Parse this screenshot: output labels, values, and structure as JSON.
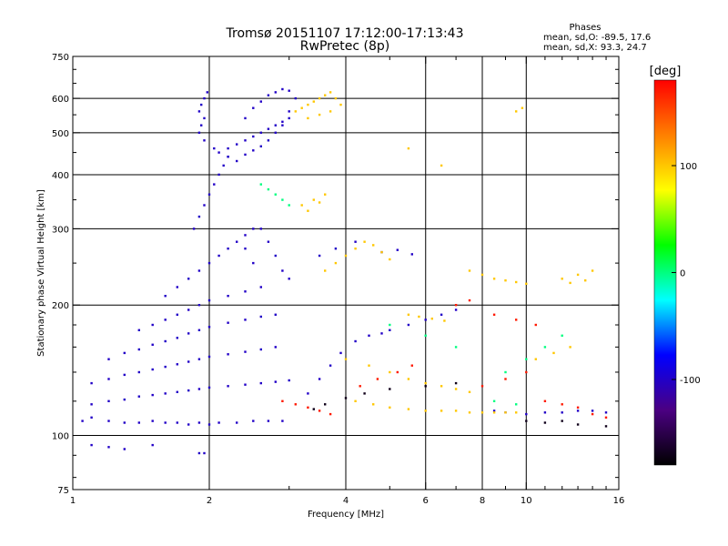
{
  "chart_data": {
    "type": "scatter",
    "title": "Tromsø 20151107 17:12:00-17:13:43",
    "subtitle": "RwPretec (8p)",
    "xlabel": "Frequency [MHz]",
    "ylabel": "Stationary phase Virtual Height [km]",
    "x_scale": "log",
    "y_scale": "log",
    "xlim": [
      1,
      16
    ],
    "ylim": [
      75,
      750
    ],
    "x_ticks": [
      1,
      2,
      4,
      6,
      8,
      10,
      16
    ],
    "x_grid": [
      2,
      4,
      6,
      8,
      10
    ],
    "y_ticks": [
      75,
      100,
      200,
      300,
      400,
      500,
      600,
      750
    ],
    "y_grid": [
      100,
      200,
      300,
      400,
      500,
      600
    ],
    "grid": true,
    "stats": {
      "heading": "Phases",
      "line_o": "mean, sd,O: -89.5, 17.6",
      "line_x": "mean, sd,X: 93.3, 24.7"
    },
    "colorbar": {
      "label": "[deg]",
      "ticks": [
        100,
        0,
        -100
      ],
      "range": [
        -180,
        180
      ],
      "colors": [
        "#000000",
        "#4b0082",
        "#0000ff",
        "#00ffff",
        "#00ff00",
        "#ffff00",
        "#ff8000",
        "#ff0000"
      ]
    },
    "series": [
      {
        "description_phase_deg": -100,
        "points": [
          [
            1.05,
            108
          ],
          [
            1.1,
            110
          ],
          [
            1.2,
            108
          ],
          [
            1.3,
            107
          ],
          [
            1.4,
            107
          ],
          [
            1.5,
            108
          ],
          [
            1.6,
            107
          ],
          [
            1.7,
            107
          ],
          [
            1.8,
            106
          ],
          [
            1.9,
            107
          ],
          [
            2.0,
            106
          ],
          [
            2.1,
            107
          ],
          [
            2.3,
            107
          ],
          [
            2.5,
            108
          ],
          [
            2.7,
            108
          ],
          [
            2.9,
            108
          ],
          [
            1.1,
            118
          ],
          [
            1.2,
            120
          ],
          [
            1.3,
            121
          ],
          [
            1.4,
            123
          ],
          [
            1.5,
            124
          ],
          [
            1.6,
            125
          ],
          [
            1.7,
            126
          ],
          [
            1.8,
            127
          ],
          [
            1.9,
            128
          ],
          [
            2.0,
            129
          ],
          [
            2.2,
            130
          ],
          [
            2.4,
            131
          ],
          [
            2.6,
            132
          ],
          [
            2.8,
            133
          ],
          [
            3.0,
            134
          ],
          [
            1.1,
            132
          ],
          [
            1.2,
            135
          ],
          [
            1.3,
            138
          ],
          [
            1.4,
            140
          ],
          [
            1.5,
            142
          ],
          [
            1.6,
            144
          ],
          [
            1.7,
            146
          ],
          [
            1.8,
            148
          ],
          [
            1.9,
            150
          ],
          [
            2.0,
            152
          ],
          [
            2.2,
            154
          ],
          [
            2.4,
            156
          ],
          [
            2.6,
            158
          ],
          [
            2.8,
            160
          ],
          [
            1.2,
            150
          ],
          [
            1.3,
            155
          ],
          [
            1.4,
            158
          ],
          [
            1.5,
            162
          ],
          [
            1.6,
            165
          ],
          [
            1.7,
            168
          ],
          [
            1.8,
            172
          ],
          [
            1.9,
            175
          ],
          [
            2.0,
            178
          ],
          [
            2.2,
            182
          ],
          [
            2.4,
            185
          ],
          [
            2.6,
            188
          ],
          [
            2.8,
            190
          ],
          [
            1.4,
            175
          ],
          [
            1.5,
            180
          ],
          [
            1.6,
            185
          ],
          [
            1.7,
            190
          ],
          [
            1.8,
            195
          ],
          [
            1.9,
            200
          ],
          [
            2.0,
            205
          ],
          [
            2.2,
            210
          ],
          [
            2.4,
            215
          ],
          [
            2.6,
            220
          ],
          [
            1.6,
            210
          ],
          [
            1.7,
            220
          ],
          [
            1.8,
            230
          ],
          [
            1.9,
            240
          ],
          [
            2.0,
            250
          ],
          [
            2.1,
            260
          ],
          [
            2.2,
            270
          ],
          [
            2.3,
            280
          ],
          [
            2.4,
            290
          ],
          [
            2.5,
            300
          ],
          [
            1.85,
            300
          ],
          [
            1.9,
            320
          ],
          [
            1.95,
            340
          ],
          [
            2.0,
            360
          ],
          [
            2.05,
            380
          ],
          [
            2.1,
            400
          ],
          [
            2.15,
            420
          ],
          [
            2.2,
            440
          ],
          [
            2.05,
            460
          ],
          [
            1.95,
            480
          ],
          [
            1.9,
            500
          ],
          [
            1.92,
            520
          ],
          [
            1.95,
            540
          ],
          [
            1.9,
            560
          ],
          [
            1.92,
            580
          ],
          [
            1.95,
            600
          ],
          [
            1.98,
            620
          ],
          [
            2.1,
            450
          ],
          [
            2.2,
            460
          ],
          [
            2.3,
            470
          ],
          [
            2.4,
            480
          ],
          [
            2.5,
            490
          ],
          [
            2.6,
            500
          ],
          [
            2.7,
            510
          ],
          [
            2.8,
            520
          ],
          [
            2.9,
            530
          ],
          [
            3.0,
            540
          ],
          [
            2.2,
            440
          ],
          [
            2.3,
            430
          ],
          [
            2.4,
            445
          ],
          [
            2.5,
            455
          ],
          [
            2.6,
            465
          ],
          [
            2.7,
            480
          ],
          [
            2.8,
            500
          ],
          [
            2.9,
            520
          ],
          [
            3.0,
            560
          ],
          [
            3.1,
            600
          ],
          [
            2.4,
            540
          ],
          [
            2.5,
            570
          ],
          [
            2.6,
            590
          ],
          [
            2.7,
            610
          ],
          [
            2.8,
            620
          ],
          [
            2.9,
            630
          ],
          [
            3.0,
            625
          ],
          [
            2.6,
            300
          ],
          [
            2.7,
            280
          ],
          [
            2.8,
            260
          ],
          [
            2.9,
            240
          ],
          [
            3.0,
            230
          ],
          [
            2.5,
            250
          ],
          [
            2.4,
            270
          ],
          [
            1.1,
            95
          ],
          [
            1.2,
            94
          ],
          [
            1.3,
            93
          ],
          [
            1.5,
            95
          ],
          [
            1.9,
            91
          ],
          [
            1.95,
            91
          ],
          [
            3.3,
            125
          ],
          [
            3.5,
            135
          ],
          [
            3.7,
            145
          ],
          [
            3.9,
            155
          ],
          [
            4.2,
            165
          ],
          [
            4.5,
            170
          ],
          [
            4.8,
            172
          ],
          [
            5.0,
            175
          ],
          [
            5.5,
            180
          ],
          [
            6.0,
            185
          ],
          [
            6.5,
            190
          ],
          [
            7.0,
            195
          ],
          [
            3.5,
            260
          ],
          [
            3.8,
            270
          ],
          [
            4.2,
            280
          ],
          [
            4.8,
            265
          ],
          [
            5.2,
            268
          ],
          [
            5.6,
            262
          ],
          [
            10.0,
            112
          ],
          [
            11,
            113
          ],
          [
            12,
            113
          ],
          [
            13,
            114
          ],
          [
            14,
            114
          ],
          [
            15,
            113
          ],
          [
            9.0,
            113
          ],
          [
            8.5,
            114
          ]
        ]
      },
      {
        "description_phase_deg": 100,
        "points": [
          [
            3.1,
            560
          ],
          [
            3.2,
            570
          ],
          [
            3.3,
            580
          ],
          [
            3.4,
            590
          ],
          [
            3.5,
            600
          ],
          [
            3.6,
            610
          ],
          [
            3.7,
            620
          ],
          [
            3.8,
            600
          ],
          [
            3.9,
            580
          ],
          [
            3.3,
            540
          ],
          [
            3.5,
            550
          ],
          [
            3.7,
            560
          ],
          [
            3.2,
            340
          ],
          [
            3.4,
            350
          ],
          [
            3.6,
            360
          ],
          [
            3.3,
            330
          ],
          [
            3.5,
            345
          ],
          [
            3.6,
            240
          ],
          [
            3.8,
            250
          ],
          [
            4.0,
            260
          ],
          [
            4.2,
            270
          ],
          [
            4.4,
            280
          ],
          [
            4.6,
            275
          ],
          [
            4.8,
            265
          ],
          [
            5.0,
            255
          ],
          [
            4.0,
            150
          ],
          [
            4.5,
            145
          ],
          [
            5.0,
            140
          ],
          [
            5.5,
            135
          ],
          [
            6.0,
            132
          ],
          [
            6.5,
            130
          ],
          [
            7.0,
            128
          ],
          [
            7.5,
            126
          ],
          [
            4.2,
            120
          ],
          [
            4.6,
            118
          ],
          [
            5.0,
            116
          ],
          [
            5.5,
            115
          ],
          [
            6.0,
            114
          ],
          [
            6.5,
            114
          ],
          [
            7.0,
            114
          ],
          [
            7.5,
            113
          ],
          [
            8.0,
            113
          ],
          [
            8.5,
            113
          ],
          [
            9.0,
            113
          ],
          [
            9.5,
            113
          ],
          [
            5.5,
            190
          ],
          [
            5.8,
            188
          ],
          [
            6.2,
            186
          ],
          [
            6.6,
            184
          ],
          [
            7.5,
            240
          ],
          [
            8.0,
            235
          ],
          [
            8.5,
            230
          ],
          [
            9.0,
            228
          ],
          [
            9.5,
            226
          ],
          [
            10.0,
            224
          ],
          [
            9.5,
            560
          ],
          [
            9.8,
            570
          ],
          [
            6.5,
            420
          ],
          [
            5.5,
            460
          ],
          [
            12,
            230
          ],
          [
            13,
            235
          ],
          [
            14,
            240
          ],
          [
            12.5,
            225
          ],
          [
            13.5,
            228
          ],
          [
            10.5,
            150
          ],
          [
            11.5,
            155
          ],
          [
            12.5,
            160
          ]
        ]
      },
      {
        "description_phase_deg": 170,
        "points": [
          [
            2.9,
            120
          ],
          [
            3.1,
            118
          ],
          [
            3.3,
            116
          ],
          [
            3.5,
            114
          ],
          [
            3.7,
            112
          ],
          [
            4.3,
            130
          ],
          [
            4.7,
            135
          ],
          [
            5.2,
            140
          ],
          [
            5.6,
            145
          ],
          [
            8.0,
            130
          ],
          [
            9.0,
            135
          ],
          [
            10.0,
            140
          ],
          [
            11.0,
            120
          ],
          [
            12.0,
            118
          ],
          [
            13.0,
            116
          ],
          [
            14.0,
            112
          ],
          [
            15.0,
            110
          ],
          [
            7.0,
            200
          ],
          [
            7.5,
            205
          ],
          [
            8.5,
            190
          ],
          [
            9.5,
            185
          ],
          [
            10.5,
            180
          ]
        ]
      },
      {
        "description_phase_deg": 0,
        "points": [
          [
            2.6,
            380
          ],
          [
            2.7,
            370
          ],
          [
            2.8,
            360
          ],
          [
            2.9,
            350
          ],
          [
            3.0,
            340
          ],
          [
            5.0,
            180
          ],
          [
            6.0,
            170
          ],
          [
            7.0,
            160
          ],
          [
            9.0,
            140
          ],
          [
            10.0,
            150
          ],
          [
            11.0,
            160
          ],
          [
            12.0,
            170
          ],
          [
            8.5,
            120
          ],
          [
            9.5,
            118
          ]
        ]
      },
      {
        "description_phase_deg": -170,
        "points": [
          [
            3.4,
            115
          ],
          [
            3.6,
            118
          ],
          [
            4.0,
            122
          ],
          [
            4.4,
            125
          ],
          [
            5.0,
            128
          ],
          [
            6.0,
            130
          ],
          [
            7.0,
            132
          ],
          [
            10,
            108
          ],
          [
            11,
            107
          ],
          [
            12,
            108
          ],
          [
            13,
            106
          ],
          [
            15,
            105
          ]
        ]
      }
    ]
  }
}
